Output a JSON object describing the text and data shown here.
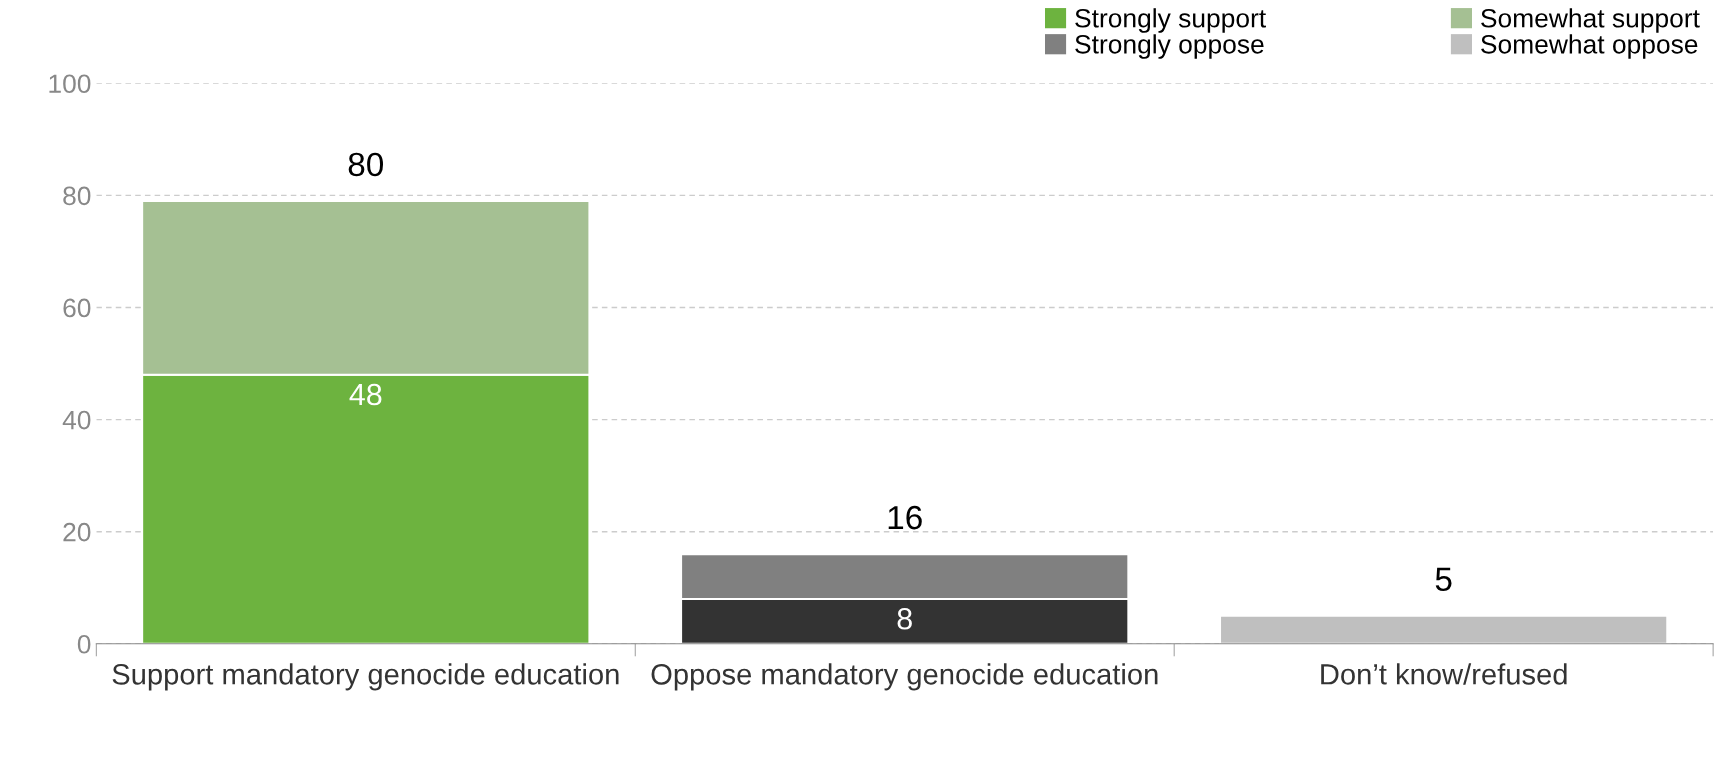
{
  "chart_data": {
    "type": "bar",
    "stacked": true,
    "categories": [
      "Support mandatory genocide education",
      "Oppose mandatory genocide education",
      "Don’t know/refused"
    ],
    "series": [
      {
        "name": "Strongly support",
        "color": "#6db33f",
        "values": [
          48,
          null,
          null
        ],
        "value_labels": [
          "48",
          null,
          null
        ]
      },
      {
        "color": "#333333",
        "values": [
          null,
          8,
          null
        ],
        "value_labels": [
          null,
          "8",
          null
        ]
      },
      {
        "name": "Strongly oppose",
        "color": "#808080",
        "values": [
          null,
          8,
          null
        ]
      },
      {
        "name": "Somewhat support",
        "color": "#a5c093",
        "values": [
          31,
          null,
          null
        ]
      },
      {
        "name": "Somewhat oppose",
        "color": "#bfbfbf",
        "values": [
          null,
          null,
          5
        ]
      }
    ],
    "totals": [
      "80",
      "16",
      "5"
    ],
    "ylim": [
      0,
      100
    ],
    "yticks": [
      0,
      20,
      40,
      60,
      80,
      100
    ],
    "grid": "y",
    "legend": "top right"
  }
}
